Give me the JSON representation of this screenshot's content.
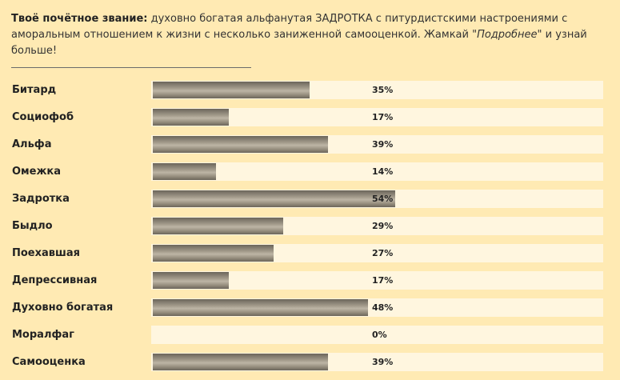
{
  "intro": {
    "label": "Твоё почётное звание",
    "colon": ":",
    "text_before": " духовно богатая альфанутая ЗАДРОТКА с питурдистскими настроениями с аморальным отношением к жизни с несколько заниженной самооценкой. Жамкай \"",
    "link": "Подробнее",
    "text_after": "\" и узнай больше!"
  },
  "rows": [
    {
      "label": "Битард",
      "value": 35,
      "pct": "35%"
    },
    {
      "label": "Социофоб",
      "value": 17,
      "pct": "17%"
    },
    {
      "label": "Альфа",
      "value": 39,
      "pct": "39%"
    },
    {
      "label": "Омежка",
      "value": 14,
      "pct": "14%"
    },
    {
      "label": "Задротка",
      "value": 54,
      "pct": "54%"
    },
    {
      "label": "Быдло",
      "value": 29,
      "pct": "29%"
    },
    {
      "label": "Поехавшая",
      "value": 27,
      "pct": "27%"
    },
    {
      "label": "Депрессивная",
      "value": 17,
      "pct": "17%"
    },
    {
      "label": "Духовно богатая",
      "value": 48,
      "pct": "48%"
    },
    {
      "label": "Моралфаг",
      "value": 0,
      "pct": "0%"
    },
    {
      "label": "Самооценка",
      "value": 39,
      "pct": "39%"
    }
  ]
}
